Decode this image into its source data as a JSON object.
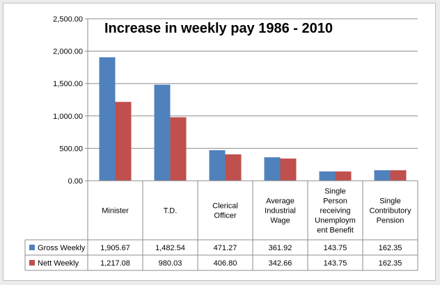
{
  "chart_data": {
    "type": "bar",
    "title": "Increase in weekly pay 1986 - 2010",
    "categories": [
      [
        "Minister"
      ],
      [
        "T.D."
      ],
      [
        "Clerical",
        "Officer"
      ],
      [
        "Average",
        "Industrial",
        "Wage"
      ],
      [
        "Single",
        "Person",
        "receiving",
        "Unemploym",
        "ent Benefit"
      ],
      [
        "Single",
        "Contributory",
        "Pension"
      ]
    ],
    "series": [
      {
        "name": "Gross Weekly",
        "color": "#4f81bd",
        "values": [
          1905.67,
          1482.54,
          471.27,
          361.92,
          143.75,
          162.35
        ],
        "labels": [
          "1,905.67",
          "1,482.54",
          "471.27",
          "361.92",
          "143.75",
          "162.35"
        ]
      },
      {
        "name": "Nett Weekly",
        "color": "#c0504d",
        "values": [
          1217.08,
          980.03,
          406.8,
          342.66,
          143.75,
          162.35
        ],
        "labels": [
          "1,217.08",
          "980.03",
          "406.80",
          "342.66",
          "143.75",
          "162.35"
        ]
      }
    ],
    "ylim": [
      0,
      2500
    ],
    "yticks": [
      "0.00",
      "500.00",
      "1,000.00",
      "1,500.00",
      "2,000.00",
      "2,500.00"
    ],
    "grid": true,
    "legend": "data-table"
  }
}
